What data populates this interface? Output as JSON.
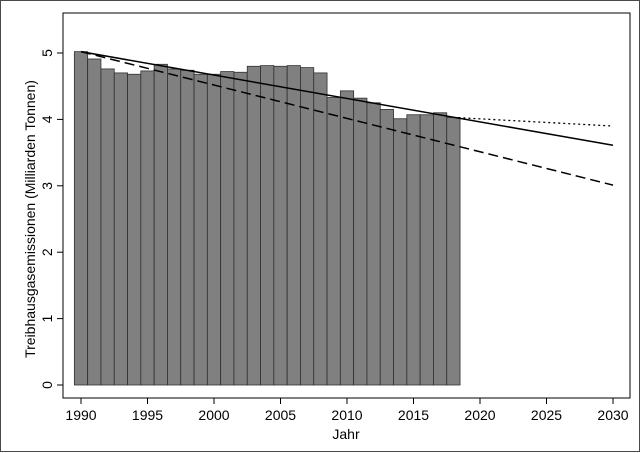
{
  "chart_data": {
    "type": "bar",
    "title": "",
    "xlabel": "Jahr",
    "ylabel": "Treibhausgasemissionen (Milliarden Tonnen)",
    "xlim": [
      1989,
      2030.5
    ],
    "ylim": [
      0,
      5.5
    ],
    "x_ticks": [
      1990,
      1995,
      2000,
      2005,
      2010,
      2015,
      2020,
      2025,
      2030
    ],
    "y_ticks": [
      0,
      1,
      2,
      3,
      4,
      5
    ],
    "grid": false,
    "legend": "none",
    "colors": {
      "bars": "#808080",
      "bar_edge": "#2f2f2f",
      "lines": "#000000"
    },
    "bars": {
      "x": [
        1990,
        1991,
        1992,
        1993,
        1994,
        1995,
        1996,
        1997,
        1998,
        1999,
        2000,
        2001,
        2002,
        2003,
        2004,
        2005,
        2006,
        2007,
        2008,
        2009,
        2010,
        2011,
        2012,
        2013,
        2014,
        2015,
        2016,
        2017,
        2018
      ],
      "values": [
        5.02,
        4.91,
        4.76,
        4.7,
        4.68,
        4.73,
        4.83,
        4.76,
        4.74,
        4.68,
        4.68,
        4.72,
        4.71,
        4.8,
        4.81,
        4.8,
        4.81,
        4.78,
        4.7,
        4.33,
        4.43,
        4.32,
        4.25,
        4.15,
        4.01,
        4.07,
        4.07,
        4.1,
        4.03
      ]
    },
    "lines": [
      {
        "style": "solid",
        "x": [
          1990,
          2030
        ],
        "y": [
          5.02,
          3.61
        ]
      },
      {
        "style": "dashed",
        "x": [
          1990,
          2030
        ],
        "y": [
          5.02,
          3.01
        ]
      },
      {
        "style": "dotted",
        "x": [
          2018,
          2030
        ],
        "y": [
          4.03,
          3.9
        ]
      }
    ]
  }
}
